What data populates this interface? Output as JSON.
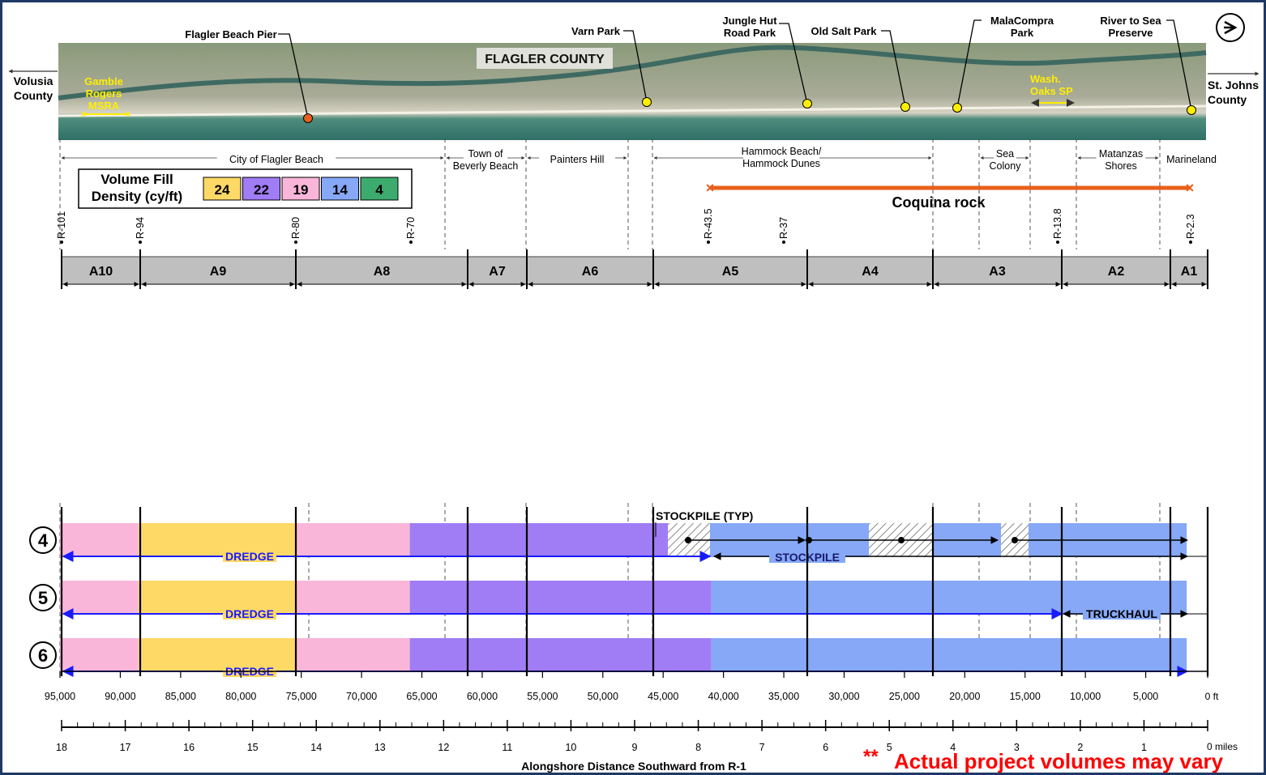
{
  "map": {
    "title": "FLAGLER COUNTY",
    "left_county": [
      "Volusia",
      "County"
    ],
    "right_county": [
      "St. Johns",
      "County"
    ],
    "gamble": [
      "Gamble",
      "Rogers",
      "MSRA"
    ],
    "wash_oaks": [
      "Wash.",
      "Oaks SP"
    ],
    "callouts": [
      {
        "lines": [
          "Flagler Beach Pier"
        ],
        "color": "#e8601c"
      },
      {
        "lines": [
          "Varn Park"
        ],
        "color": "#ffee00"
      },
      {
        "lines": [
          "Jungle Hut",
          "Road Park"
        ],
        "color": "#ffee00"
      },
      {
        "lines": [
          "Old Salt Park"
        ],
        "color": "#ffee00"
      },
      {
        "lines": [
          "MalaCompra",
          "Park"
        ],
        "color": "#ffee00"
      },
      {
        "lines": [
          "River to Sea",
          "Preserve"
        ],
        "color": "#ffee00"
      }
    ],
    "compass_icon": "arrow-right-icon"
  },
  "communities": [
    {
      "lines": [
        "City of Flagler Beach"
      ]
    },
    {
      "lines": [
        "Town of",
        "Beverly Beach"
      ]
    },
    {
      "lines": [
        "Painters Hill"
      ]
    },
    {
      "lines": [
        "Hammock Beach/",
        "Hammock Dunes"
      ]
    },
    {
      "lines": [
        "Sea",
        "Colony"
      ]
    },
    {
      "lines": [
        "Matanzas",
        "Shores"
      ]
    },
    {
      "lines": [
        "Marineland"
      ]
    }
  ],
  "legend": {
    "title": [
      "Volume Fill",
      "Density (cy/ft)"
    ],
    "items": [
      {
        "value": "24",
        "color": "#ffd966"
      },
      {
        "value": "22",
        "color": "#a07cf5"
      },
      {
        "value": "19",
        "color": "#f9b6d9"
      },
      {
        "value": "14",
        "color": "#86a8f6"
      },
      {
        "value": "4",
        "color": "#3daa6e"
      }
    ]
  },
  "coquina": {
    "label": "Coquina rock",
    "color": "#e8601c"
  },
  "r_markers": [
    "R-101",
    "R-94",
    "R-80",
    "R-70",
    "R-43.5",
    "R-37",
    "R-13.8",
    "R-2.3"
  ],
  "segments": [
    "A10",
    "A9",
    "A8",
    "A7",
    "A6",
    "A5",
    "A4",
    "A3",
    "A2",
    "A1"
  ],
  "alternatives": [
    {
      "number": "4",
      "bands": [
        {
          "from": 95000,
          "to": 88500,
          "color": "#f9b6d9"
        },
        {
          "from": 88500,
          "to": 75500,
          "color": "#ffd966"
        },
        {
          "from": 75500,
          "to": 66000,
          "color": "#f9b6d9"
        },
        {
          "from": 66000,
          "to": 44500,
          "color": "#a07cf5"
        },
        {
          "from": 44500,
          "to": 1600,
          "color": "#86a8f6"
        }
      ]
    },
    {
      "number": "5",
      "bands": [
        {
          "from": 95000,
          "to": 88500,
          "color": "#f9b6d9"
        },
        {
          "from": 88500,
          "to": 75500,
          "color": "#ffd966"
        },
        {
          "from": 75500,
          "to": 66000,
          "color": "#f9b6d9"
        },
        {
          "from": 66000,
          "to": 41000,
          "color": "#a07cf5"
        },
        {
          "from": 41000,
          "to": 1600,
          "color": "#86a8f6"
        }
      ]
    },
    {
      "number": "6",
      "bands": [
        {
          "from": 95000,
          "to": 88500,
          "color": "#f9b6d9"
        },
        {
          "from": 88500,
          "to": 75500,
          "color": "#ffd966"
        },
        {
          "from": 75500,
          "to": 66000,
          "color": "#f9b6d9"
        },
        {
          "from": 66000,
          "to": 41000,
          "color": "#a07cf5"
        },
        {
          "from": 41000,
          "to": 1600,
          "color": "#86a8f6"
        }
      ]
    }
  ],
  "labels": {
    "dredge": "DREDGE",
    "stockpile": "STOCKPILE",
    "stockpile_typ": "STOCKPILE (TYP)",
    "truckhaul": "TRUCKHAUL"
  },
  "ft_axis": {
    "unit": "0 ft",
    "ticks": [
      95000,
      90000,
      85000,
      80000,
      75000,
      70000,
      65000,
      60000,
      55000,
      50000,
      45000,
      40000,
      35000,
      30000,
      25000,
      20000,
      15000,
      10000,
      5000
    ],
    "tick_labels": [
      "95,000",
      "90,000",
      "85,000",
      "80,000",
      "75,000",
      "70,000",
      "65,000",
      "60,000",
      "55,000",
      "50,000",
      "45,000",
      "40,000",
      "35,000",
      "30,000",
      "25,000",
      "20,000",
      "15,000",
      "10,000",
      "5,000"
    ]
  },
  "mile_axis": {
    "unit": "0 miles",
    "tick_labels": [
      "18",
      "17",
      "16",
      "15",
      "14",
      "13",
      "12",
      "11",
      "10",
      "9",
      "8",
      "7",
      "6",
      "5",
      "4",
      "3",
      "2",
      "1"
    ],
    "title": "Alongshore Distance Southward from R-1"
  },
  "note": {
    "prefix": "**",
    "text": "Actual  project volumes may vary",
    "color": "#ff0000"
  }
}
